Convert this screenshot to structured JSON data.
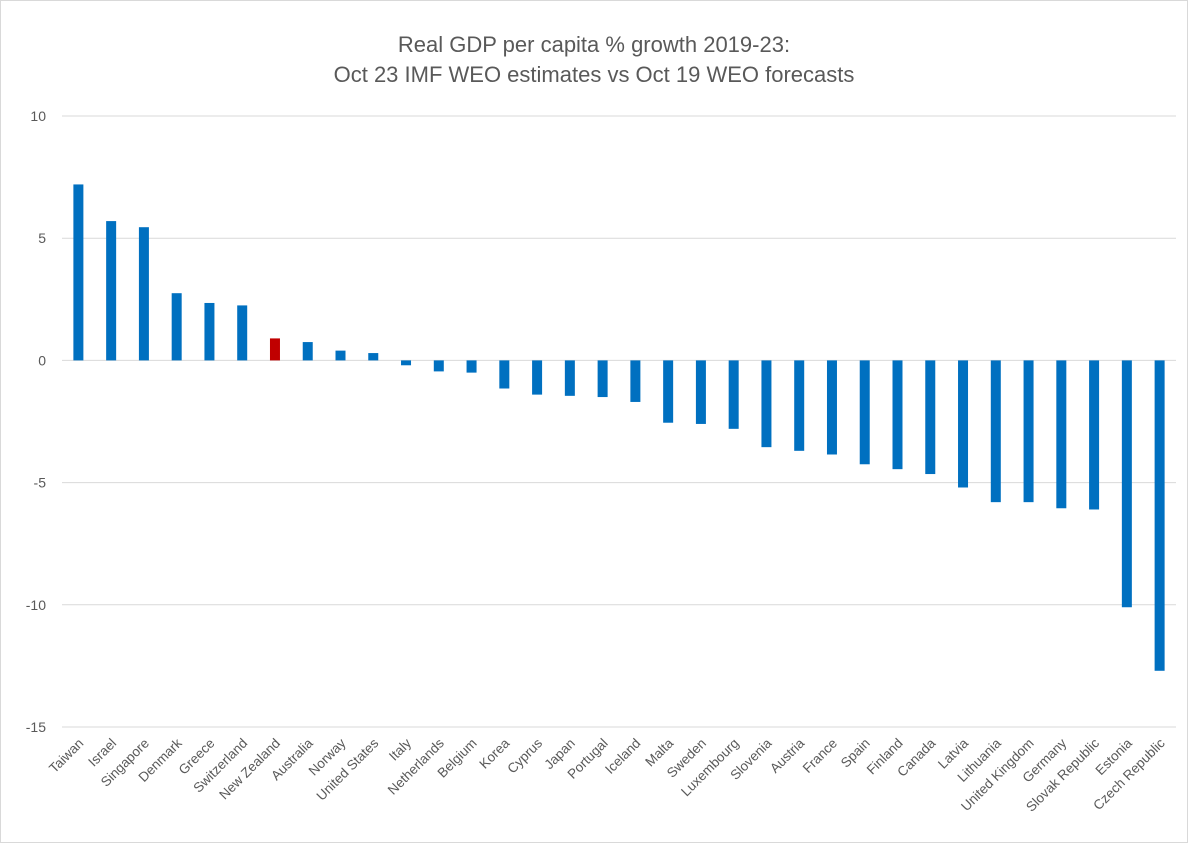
{
  "chart_data": {
    "type": "bar",
    "title": "Real GDP per capita % growth 2019-23:",
    "subtitle": "Oct 23 IMF WEO estimates vs Oct 19 WEO forecasts",
    "xlabel": "",
    "ylabel": "",
    "ylim": [
      -15,
      10
    ],
    "yticks": [
      10,
      5,
      0,
      -5,
      -10,
      -15
    ],
    "grid": true,
    "legend": "none",
    "bar_color": "#0070C0",
    "highlight_color": "#C00000",
    "highlight_category": "New Zealand",
    "categories": [
      "Taiwan",
      "Israel",
      "Singapore",
      "Denmark",
      "Greece",
      "Switzerland",
      "New Zealand",
      "Australia",
      "Norway",
      "United States",
      "Italy",
      "Netherlands",
      "Belgium",
      "Korea",
      "Cyprus",
      "Japan",
      "Portugal",
      "Iceland",
      "Malta",
      "Sweden",
      "Luxembourg",
      "Slovenia",
      "Austria",
      "France",
      "Spain",
      "Finland",
      "Canada",
      "Latvia",
      "Lithuania",
      "United Kingdom",
      "Germany",
      "Slovak Republic",
      "Estonia",
      "Czech Republic"
    ],
    "values": [
      7.2,
      5.7,
      5.45,
      2.75,
      2.35,
      2.25,
      0.9,
      0.75,
      0.4,
      0.3,
      -0.2,
      -0.45,
      -0.5,
      -1.15,
      -1.4,
      -1.45,
      -1.5,
      -1.7,
      -2.55,
      -2.6,
      -2.8,
      -3.55,
      -3.7,
      -3.85,
      -4.25,
      -4.45,
      -4.65,
      -5.2,
      -5.8,
      -5.8,
      -6.05,
      -6.1,
      -10.1,
      -12.7
    ]
  }
}
